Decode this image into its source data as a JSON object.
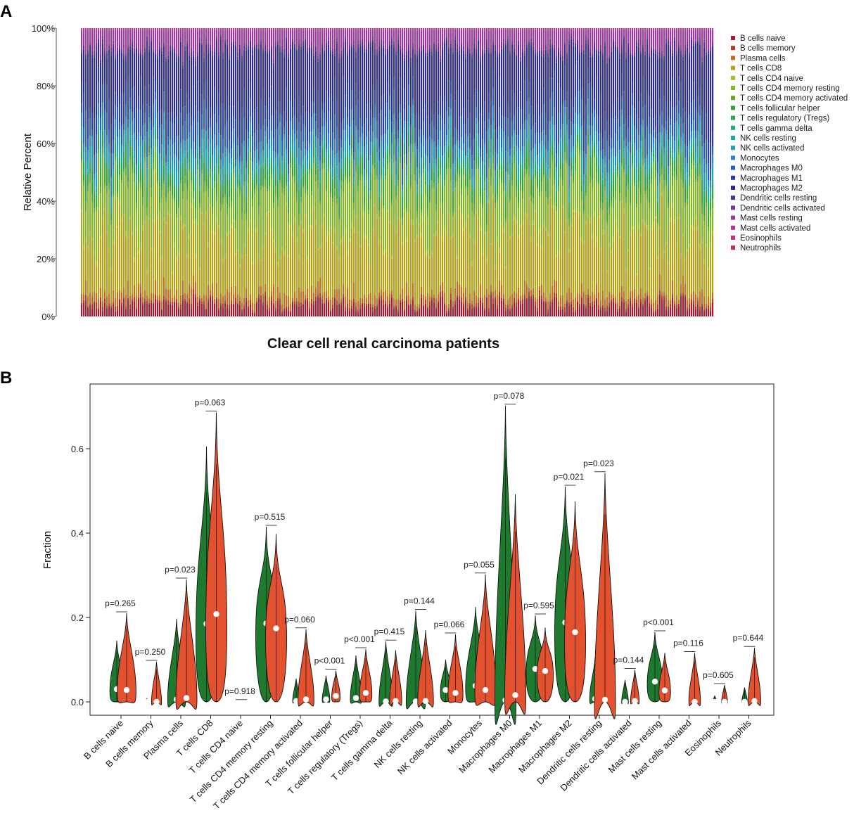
{
  "panel_a_letter": "A",
  "panel_b_letter": "B",
  "chart_data": [
    {
      "type": "bar",
      "subtype": "stacked-100-percent",
      "ylabel": "Relative Percent",
      "xlabel": "Clear cell renal carcinoma patients",
      "yticks": [
        "0%",
        "20%",
        "40%",
        "60%",
        "80%",
        "100%"
      ],
      "ylim": [
        0,
        100
      ],
      "legend_position": "right",
      "n_samples": 300,
      "series": [
        {
          "name": "B cells naive",
          "color": "#a6192e",
          "mean_pct": 4
        },
        {
          "name": "B cells memory",
          "color": "#b83b1b",
          "mean_pct": 1
        },
        {
          "name": "Plasma cells",
          "color": "#c86a1c",
          "mean_pct": 3
        },
        {
          "name": "T cells CD8",
          "color": "#b5a21b",
          "mean_pct": 20
        },
        {
          "name": "T cells CD4 naive",
          "color": "#a7b923",
          "mean_pct": 1
        },
        {
          "name": "T cells CD4 memory resting",
          "color": "#86b42a",
          "mean_pct": 15
        },
        {
          "name": "T cells CD4 memory activated",
          "color": "#5eaa2f",
          "mean_pct": 2
        },
        {
          "name": "T cells follicular helper",
          "color": "#36a32f",
          "mean_pct": 3
        },
        {
          "name": "T cells regulatory (Tregs)",
          "color": "#2da450",
          "mean_pct": 3
        },
        {
          "name": "T cells gamma delta",
          "color": "#20a77c",
          "mean_pct": 1
        },
        {
          "name": "NK cells resting",
          "color": "#1da89f",
          "mean_pct": 1
        },
        {
          "name": "NK cells activated",
          "color": "#1f9fbe",
          "mean_pct": 3
        },
        {
          "name": "Monocytes",
          "color": "#2a84c7",
          "mean_pct": 4
        },
        {
          "name": "Macrophages M0",
          "color": "#2b5bbf",
          "mean_pct": 6
        },
        {
          "name": "Macrophages M1",
          "color": "#2a3da8",
          "mean_pct": 8
        },
        {
          "name": "Macrophages M2",
          "color": "#2e2d8e",
          "mean_pct": 17
        },
        {
          "name": "Dendritic cells resting",
          "color": "#51318f",
          "mean_pct": 1
        },
        {
          "name": "Dendritic cells activated",
          "color": "#7a329a",
          "mean_pct": 1
        },
        {
          "name": "Mast cells resting",
          "color": "#9b37a3",
          "mean_pct": 5
        },
        {
          "name": "Mast cells activated",
          "color": "#b3349a",
          "mean_pct": 0.5
        },
        {
          "name": "Eosinophils",
          "color": "#c13186",
          "mean_pct": 0.3
        },
        {
          "name": "Neutrophils",
          "color": "#c42d5e",
          "mean_pct": 0.2
        }
      ]
    },
    {
      "type": "violin",
      "ylabel": "Fraction",
      "yticks": [
        "0.0",
        "0.2",
        "0.4",
        "0.6"
      ],
      "ylim": [
        0,
        0.73
      ],
      "group_colors": [
        "#1e7a2e",
        "#e4512f"
      ],
      "categories": [
        {
          "name": "B cells naive",
          "p": "p=0.265",
          "g1": {
            "med": 0.03,
            "max": 0.145
          },
          "g2": {
            "med": 0.028,
            "max": 0.21
          }
        },
        {
          "name": "B cells memory",
          "p": "p=0.250",
          "g1": {
            "med": 0.0,
            "max": 0.008
          },
          "g2": {
            "med": 0.0,
            "max": 0.095
          }
        },
        {
          "name": "Plasma cells",
          "p": "p=0.023",
          "g1": {
            "med": 0.006,
            "max": 0.197
          },
          "g2": {
            "med": 0.009,
            "max": 0.29
          }
        },
        {
          "name": "T cells CD8",
          "p": "p=0.063",
          "g1": {
            "med": 0.185,
            "max": 0.605
          },
          "g2": {
            "med": 0.208,
            "max": 0.686
          }
        },
        {
          "name": "T cells CD4 naive",
          "p": "p=0.918",
          "g1": {
            "med": 0.0,
            "max": 0.002
          },
          "g2": {
            "med": 0.0,
            "max": 0.002
          }
        },
        {
          "name": "T cells CD4 memory resting",
          "p": "p=0.515",
          "g1": {
            "med": 0.186,
            "max": 0.415
          },
          "g2": {
            "med": 0.174,
            "max": 0.398
          }
        },
        {
          "name": "T cells CD4 memory activated",
          "p": "p=0.060",
          "g1": {
            "med": 0.002,
            "max": 0.055
          },
          "g2": {
            "med": 0.006,
            "max": 0.172
          }
        },
        {
          "name": "T cells follicular helper",
          "p": "p<0.001",
          "g1": {
            "med": 0.006,
            "max": 0.062
          },
          "g2": {
            "med": 0.014,
            "max": 0.074
          }
        },
        {
          "name": "T cells regulatory (Tregs)",
          "p": "p<0.001",
          "g1": {
            "med": 0.009,
            "max": 0.11
          },
          "g2": {
            "med": 0.021,
            "max": 0.125
          }
        },
        {
          "name": "T cells gamma delta",
          "p": "p=0.415",
          "g1": {
            "med": 0.001,
            "max": 0.143
          },
          "g2": {
            "med": 0.002,
            "max": 0.122
          }
        },
        {
          "name": "NK cells resting",
          "p": "p=0.144",
          "g1": {
            "med": 0.001,
            "max": 0.216
          },
          "g2": {
            "med": 0.002,
            "max": 0.17
          }
        },
        {
          "name": "NK cells activated",
          "p": "p=0.066",
          "g1": {
            "med": 0.028,
            "max": 0.1
          },
          "g2": {
            "med": 0.021,
            "max": 0.16
          }
        },
        {
          "name": "Monocytes",
          "p": "p=0.055",
          "g1": {
            "med": 0.038,
            "max": 0.225
          },
          "g2": {
            "med": 0.028,
            "max": 0.302
          }
        },
        {
          "name": "Macrophages M0",
          "p": "p=0.078",
          "g1": {
            "med": 0.004,
            "max": 0.702
          },
          "g2": {
            "med": 0.016,
            "max": 0.492
          }
        },
        {
          "name": "Macrophages M1",
          "p": "p=0.595",
          "g1": {
            "med": 0.078,
            "max": 0.205
          },
          "g2": {
            "med": 0.073,
            "max": 0.176
          }
        },
        {
          "name": "Macrophages M2",
          "p": "p=0.021",
          "g1": {
            "med": 0.188,
            "max": 0.51
          },
          "g2": {
            "med": 0.165,
            "max": 0.475
          }
        },
        {
          "name": "Dendritic cells resting",
          "p": "p=0.023",
          "g1": {
            "med": 0.007,
            "max": 0.106
          },
          "g2": {
            "med": 0.005,
            "max": 0.542
          }
        },
        {
          "name": "Dendritic cells activated",
          "p": "p=0.144",
          "g1": {
            "med": 0.0,
            "max": 0.052
          },
          "g2": {
            "med": 0.002,
            "max": 0.076
          }
        },
        {
          "name": "Mast cells resting",
          "p": "p<0.001",
          "g1": {
            "med": 0.048,
            "max": 0.165
          },
          "g2": {
            "med": 0.027,
            "max": 0.116
          }
        },
        {
          "name": "Mast cells activated",
          "p": "p=0.116",
          "g1": {
            "med": 0.0,
            "max": 0.006
          },
          "g2": {
            "med": 0.0,
            "max": 0.116
          }
        },
        {
          "name": "Eosinophils",
          "p": "p=0.605",
          "g1": {
            "med": 0.0,
            "max": 0.014
          },
          "g2": {
            "med": 0.0,
            "max": 0.04
          }
        },
        {
          "name": "Neutrophils",
          "p": "p=0.644",
          "g1": {
            "med": 0.0,
            "max": 0.034
          },
          "g2": {
            "med": 0.002,
            "max": 0.128
          }
        }
      ]
    }
  ]
}
